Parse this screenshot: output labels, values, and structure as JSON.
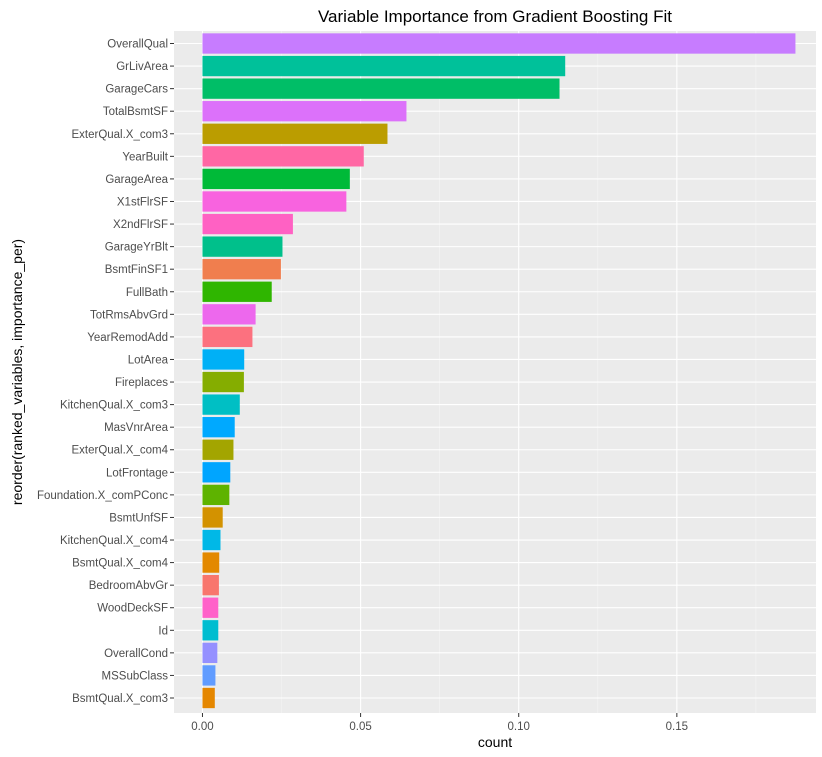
{
  "chart_data": {
    "type": "bar",
    "orientation": "horizontal",
    "title": "Variable Importance from Gradient Boosting Fit",
    "xlabel": "count",
    "ylabel": "reorder(ranked_variables, importance_per)",
    "xlim": [
      -0.009,
      0.194
    ],
    "xticks": [
      0.0,
      0.05,
      0.1,
      0.15
    ],
    "xtick_labels": [
      "0.00",
      "0.05",
      "0.10",
      "0.15"
    ],
    "grid": true,
    "legend": "none",
    "background": "#ebebeb",
    "categories": [
      "OverallQual",
      "GrLivArea",
      "GarageCars",
      "TotalBsmtSF",
      "ExterQual.X_com3",
      "YearBuilt",
      "GarageArea",
      "X1stFlrSF",
      "X2ndFlrSF",
      "GarageYrBlt",
      "BsmtFinSF1",
      "FullBath",
      "TotRmsAbvGrd",
      "YearRemodAdd",
      "LotArea",
      "Fireplaces",
      "KitchenQual.X_com3",
      "MasVnrArea",
      "ExterQual.X_com4",
      "LotFrontage",
      "Foundation.X_comPConc",
      "BsmtUnfSF",
      "KitchenQual.X_com4",
      "BsmtQual.X_com4",
      "BedroomAbvGr",
      "WoodDeckSF",
      "Id",
      "OverallCond",
      "MSSubClass",
      "BsmtQual.X_com3"
    ],
    "values": [
      0.1875,
      0.1147,
      0.1129,
      0.0645,
      0.0585,
      0.051,
      0.0466,
      0.0455,
      0.0286,
      0.0253,
      0.0248,
      0.0219,
      0.0168,
      0.0158,
      0.0132,
      0.0131,
      0.0118,
      0.0102,
      0.0098,
      0.0088,
      0.0085,
      0.0064,
      0.0057,
      0.0053,
      0.0052,
      0.005,
      0.005,
      0.0047,
      0.0041,
      0.0039
    ],
    "colors": [
      "#C77CFF",
      "#00C19A",
      "#00BE67",
      "#DC71FA",
      "#BB9D00",
      "#FF67A4",
      "#00BA38",
      "#F863DF",
      "#FF61C3",
      "#00C08B",
      "#F07E4E",
      "#2FB600",
      "#ED68ED",
      "#FC717F",
      "#00B0F6",
      "#85AD00",
      "#00BFC4",
      "#00A9FF",
      "#A3A500",
      "#00A5FF",
      "#5EB300",
      "#D39200",
      "#00B8E7",
      "#E38900",
      "#F8766D",
      "#FF61C9",
      "#00BDD0",
      "#9590FF",
      "#619CFF",
      "#E58700"
    ]
  }
}
